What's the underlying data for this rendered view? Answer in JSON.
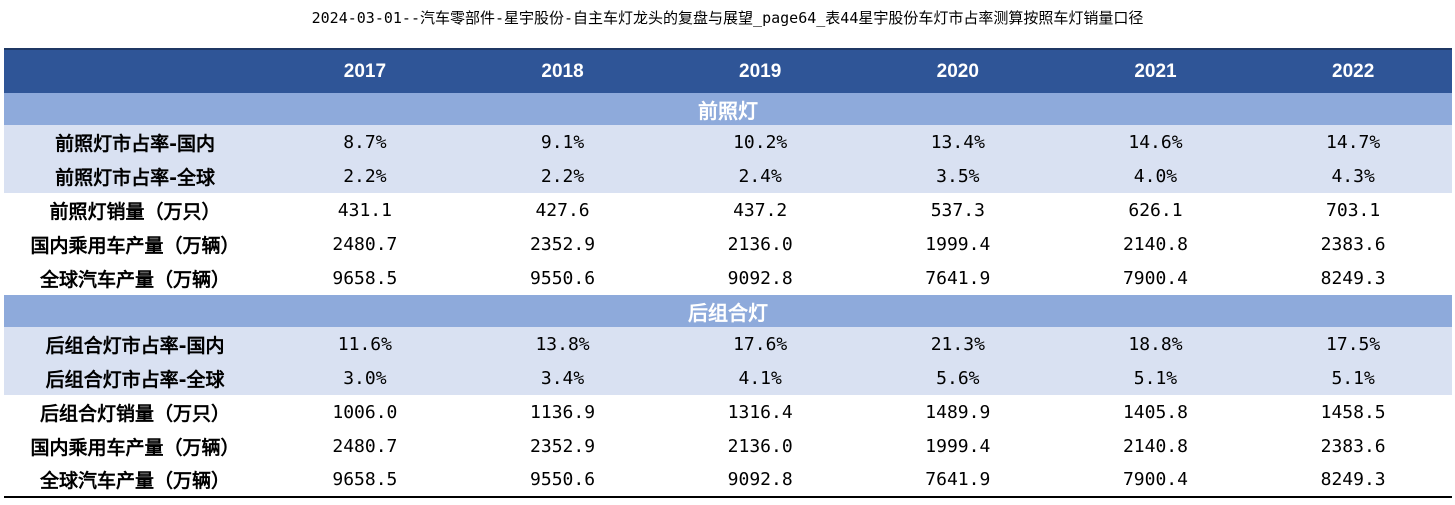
{
  "title": "2024-03-01--汽车零部件-星宇股份-自主车灯龙头的复盘与展望_page64_表44星宇股份车灯市占率测算按照车灯销量口径",
  "table": {
    "header": [
      "",
      "2017",
      "2018",
      "2019",
      "2020",
      "2021",
      "2022"
    ],
    "sections": [
      {
        "name": "前照灯",
        "rows": [
          {
            "label": "前照灯市占率-国内",
            "values": [
              "8.7%",
              "9.1%",
              "10.2%",
              "13.4%",
              "14.6%",
              "14.7%"
            ],
            "shaded": true
          },
          {
            "label": "前照灯市占率-全球",
            "values": [
              "2.2%",
              "2.2%",
              "2.4%",
              "3.5%",
              "4.0%",
              "4.3%"
            ],
            "shaded": true
          },
          {
            "label": "前照灯销量（万只）",
            "values": [
              "431.1",
              "427.6",
              "437.2",
              "537.3",
              "626.1",
              "703.1"
            ],
            "shaded": false
          },
          {
            "label": "国内乘用车产量（万辆）",
            "values": [
              "2480.7",
              "2352.9",
              "2136.0",
              "1999.4",
              "2140.8",
              "2383.6"
            ],
            "shaded": false
          },
          {
            "label": "全球汽车产量（万辆）",
            "values": [
              "9658.5",
              "9550.6",
              "9092.8",
              "7641.9",
              "7900.4",
              "8249.3"
            ],
            "shaded": false
          }
        ]
      },
      {
        "name": "后组合灯",
        "rows": [
          {
            "label": "后组合灯市占率-国内",
            "values": [
              "11.6%",
              "13.8%",
              "17.6%",
              "21.3%",
              "18.8%",
              "17.5%"
            ],
            "shaded": true
          },
          {
            "label": "后组合灯市占率-全球",
            "values": [
              "3.0%",
              "3.4%",
              "4.1%",
              "5.6%",
              "5.1%",
              "5.1%"
            ],
            "shaded": true
          },
          {
            "label": "后组合灯销量（万只）",
            "values": [
              "1006.0",
              "1136.9",
              "1316.4",
              "1489.9",
              "1405.8",
              "1458.5"
            ],
            "shaded": false
          },
          {
            "label": "国内乘用车产量（万辆）",
            "values": [
              "2480.7",
              "2352.9",
              "2136.0",
              "1999.4",
              "2140.8",
              "2383.6"
            ],
            "shaded": false
          },
          {
            "label": "全球汽车产量（万辆）",
            "values": [
              "9658.5",
              "9550.6",
              "9092.8",
              "7641.9",
              "7900.4",
              "8249.3"
            ],
            "shaded": false
          }
        ]
      }
    ]
  },
  "colors": {
    "header_bg": "#2f5597",
    "section_bg": "#8eaadb",
    "shaded_row_bg": "#d9e1f2"
  }
}
